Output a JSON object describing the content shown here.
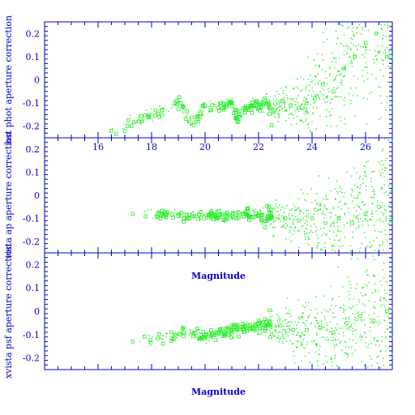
{
  "chart_data": [
    {
      "type": "scatter",
      "ylabel": "hst phot aperture correction",
      "xlabel": "",
      "xlim": [
        14,
        27
      ],
      "ylim": [
        -0.25,
        0.25
      ],
      "x_ticks_labeled": [
        "16",
        "18",
        "20",
        "22",
        "24",
        "26"
      ],
      "y_ticks_labeled": [
        "0.2",
        "0.1",
        "0",
        "-0.1",
        "-0.2"
      ],
      "seed": 11,
      "points": [
        [
          16.5,
          -0.22
        ],
        [
          19.1,
          -0.1
        ],
        [
          19.4,
          -0.18
        ],
        [
          19.7,
          -0.17
        ],
        [
          20.0,
          -0.11
        ],
        [
          20.5,
          -0.12
        ],
        [
          21.0,
          -0.1
        ],
        [
          21.2,
          -0.17
        ],
        [
          21.5,
          -0.13
        ],
        [
          21.8,
          -0.11
        ],
        [
          22.0,
          -0.12
        ],
        [
          22.3,
          -0.1
        ],
        [
          22.6,
          -0.13
        ],
        [
          22.9,
          -0.09
        ],
        [
          23.2,
          -0.11
        ],
        [
          23.5,
          -0.12
        ],
        [
          23.8,
          -0.1
        ],
        [
          24.1,
          -0.08
        ],
        [
          24.4,
          -0.02
        ],
        [
          24.8,
          -0.05
        ],
        [
          25.2,
          0.05
        ],
        [
          25.6,
          0.1
        ],
        [
          26.0,
          0.16
        ],
        [
          26.4,
          0.2
        ],
        [
          26.8,
          0.1
        ]
      ]
    },
    {
      "type": "scatter",
      "ylabel": "vista ap aperture correction",
      "xlabel": "Magnitude",
      "xlim": [
        14,
        27
      ],
      "ylim": [
        -0.25,
        0.25
      ],
      "y_ticks_labeled": [
        "0.2",
        "0.1",
        "0",
        "-0.1",
        "-0.2"
      ],
      "seed": 29,
      "points": [
        [
          17.3,
          -0.08
        ],
        [
          18.4,
          -0.08
        ],
        [
          19.0,
          -0.09
        ],
        [
          19.6,
          -0.09
        ],
        [
          20.2,
          -0.08
        ],
        [
          20.8,
          -0.09
        ],
        [
          21.4,
          -0.08
        ],
        [
          22.0,
          -0.09
        ],
        [
          22.5,
          -0.1
        ],
        [
          23.0,
          -0.1
        ],
        [
          23.5,
          -0.11
        ],
        [
          24.0,
          -0.1
        ],
        [
          24.5,
          -0.12
        ],
        [
          25.0,
          -0.1
        ],
        [
          25.5,
          -0.12
        ],
        [
          26.0,
          -0.08
        ],
        [
          26.5,
          -0.05
        ]
      ]
    },
    {
      "type": "scatter",
      "ylabel": "xvista psf aperture correction",
      "xlabel": "Magnitude",
      "xlim": [
        14,
        27
      ],
      "ylim": [
        -0.25,
        0.25
      ],
      "y_ticks_labeled": [
        "0.2",
        "0.1",
        "0",
        "-0.1",
        "-0.2"
      ],
      "seed": 47,
      "points": [
        [
          17.3,
          -0.13
        ],
        [
          18.9,
          -0.1
        ],
        [
          19.5,
          -0.09
        ],
        [
          20.0,
          -0.11
        ],
        [
          20.6,
          -0.09
        ],
        [
          21.2,
          -0.08
        ],
        [
          21.8,
          -0.07
        ],
        [
          22.3,
          -0.06
        ],
        [
          22.8,
          -0.06
        ],
        [
          23.3,
          -0.08
        ],
        [
          23.8,
          -0.08
        ],
        [
          24.3,
          -0.07
        ],
        [
          24.8,
          -0.09
        ],
        [
          25.3,
          -0.05
        ],
        [
          25.8,
          -0.02
        ],
        [
          26.3,
          -0.04
        ],
        [
          26.8,
          0.0
        ]
      ]
    }
  ]
}
